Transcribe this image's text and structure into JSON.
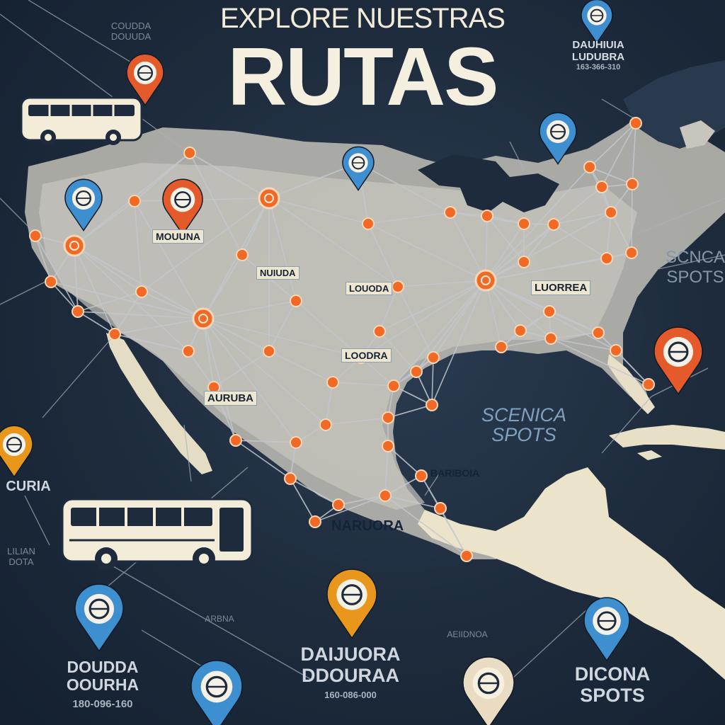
{
  "header": {
    "subtitle": "EXPLORE NUESTRAS",
    "title": "RUTAS"
  },
  "colors": {
    "ocean": "#1d2b3c",
    "land": "#eae1c9",
    "route_line": "#b8bec6",
    "stop_orange": "#f06a25",
    "pin_blue": "#3d8fd0",
    "pin_orange": "#e55a2b",
    "pin_gold": "#e8961c",
    "title": "#f4efdf"
  },
  "map_labels": [
    {
      "id": "mouuna",
      "text": "MOUUNA"
    },
    {
      "id": "nuiuda",
      "text": "NUIUDA"
    },
    {
      "id": "louoda",
      "text": "LOUODA"
    },
    {
      "id": "luorrea",
      "text": "LUORREA"
    },
    {
      "id": "loodra",
      "text": "LOODRA"
    },
    {
      "id": "auruba",
      "text": "AURUBA"
    },
    {
      "id": "bariboia",
      "text": "BARIBOIA"
    },
    {
      "id": "naruora",
      "text": "NARUORA"
    }
  ],
  "side_labels": {
    "top_right": {
      "line1": "DAUHIUIA",
      "line2": "LUDUBRA",
      "line3": "163-366-310"
    },
    "top_left": {
      "line1": "COUDDA",
      "line2": "DOUUDA"
    },
    "scena_right": {
      "line1": "SCNCA",
      "line2": "SPOTS"
    },
    "scenica_sea": {
      "line1": "SCENICA",
      "line2": "SPOTS"
    },
    "curia_left": {
      "text": "CURIA"
    },
    "left_small": {
      "line1": "LILIAN",
      "line2": "DOTA"
    },
    "bottom_left": {
      "line1": "DOUDDA",
      "line2": "OOURHA",
      "line3": "180-096-160"
    },
    "bottom_center": {
      "line1": "DAIJUORA",
      "line2": "DDOURAA",
      "line3": "160-086-000"
    },
    "bottom_right": {
      "line1": "DICONA",
      "line2": "SPOTS"
    },
    "bottom_small_left": {
      "text": "ARBNA"
    },
    "bottom_small_right": {
      "text": "AEIIDNOA"
    }
  },
  "pins": [
    {
      "id": "pin-top-left",
      "color": "orange",
      "icon": "location-icon"
    },
    {
      "id": "pin-top-right",
      "color": "blue",
      "icon": "globe-icon"
    },
    {
      "id": "pin-left",
      "color": "blue",
      "icon": "globe-icon"
    },
    {
      "id": "pin-orange-center",
      "color": "orange",
      "icon": "location-icon"
    },
    {
      "id": "pin-blue-center",
      "color": "blue",
      "icon": "globe-icon"
    },
    {
      "id": "pin-blue-east",
      "color": "blue",
      "icon": "globe-icon"
    },
    {
      "id": "pin-orange-east",
      "color": "orange",
      "icon": "location-icon"
    },
    {
      "id": "pin-gold-west",
      "color": "gold",
      "icon": "location-icon"
    },
    {
      "id": "pin-blue-south-left",
      "color": "blue",
      "icon": "globe-icon"
    },
    {
      "id": "pin-blue-bottom",
      "color": "blue",
      "icon": "bus-icon"
    },
    {
      "id": "pin-gold-bottom",
      "color": "gold",
      "icon": "globe-icon"
    },
    {
      "id": "pin-cream-bottom",
      "color": "cream",
      "icon": "globe-icon"
    },
    {
      "id": "pin-blue-bottom-right",
      "color": "blue",
      "icon": "bus-icon"
    }
  ]
}
